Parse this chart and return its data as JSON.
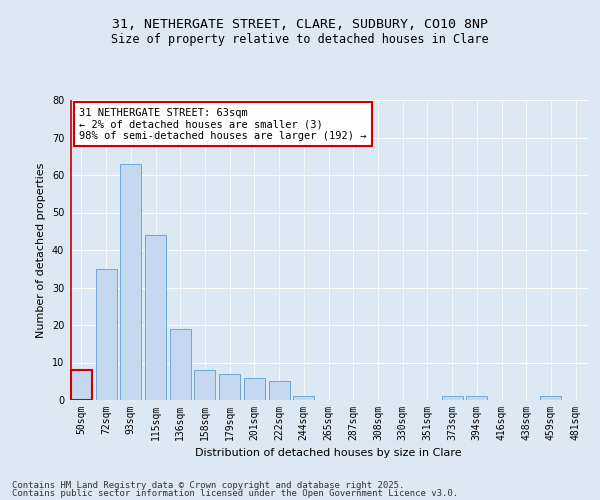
{
  "title_line1": "31, NETHERGATE STREET, CLARE, SUDBURY, CO10 8NP",
  "title_line2": "Size of property relative to detached houses in Clare",
  "xlabel": "Distribution of detached houses by size in Clare",
  "ylabel": "Number of detached properties",
  "categories": [
    "50sqm",
    "72sqm",
    "93sqm",
    "115sqm",
    "136sqm",
    "158sqm",
    "179sqm",
    "201sqm",
    "222sqm",
    "244sqm",
    "265sqm",
    "287sqm",
    "308sqm",
    "330sqm",
    "351sqm",
    "373sqm",
    "394sqm",
    "416sqm",
    "438sqm",
    "459sqm",
    "481sqm"
  ],
  "values": [
    8,
    35,
    63,
    44,
    19,
    8,
    7,
    6,
    5,
    1,
    0,
    0,
    0,
    0,
    0,
    1,
    1,
    0,
    0,
    1,
    0
  ],
  "bar_color": "#c5d8f0",
  "bar_edge_color": "#5a9fd4",
  "highlight_edge_color": "#cc0000",
  "annotation_text": "31 NETHERGATE STREET: 63sqm\n← 2% of detached houses are smaller (3)\n98% of semi-detached houses are larger (192) →",
  "annotation_box_color": "#ffffff",
  "annotation_box_edge_color": "#cc0000",
  "ylim": [
    0,
    80
  ],
  "yticks": [
    0,
    10,
    20,
    30,
    40,
    50,
    60,
    70,
    80
  ],
  "bg_color": "#dde8f5",
  "plot_bg_color": "#dde8f5",
  "footer_line1": "Contains HM Land Registry data © Crown copyright and database right 2025.",
  "footer_line2": "Contains public sector information licensed under the Open Government Licence v3.0.",
  "title_fontsize": 9.5,
  "subtitle_fontsize": 8.5,
  "axis_label_fontsize": 8,
  "tick_fontsize": 7,
  "annotation_fontsize": 7.5,
  "footer_fontsize": 6.5
}
